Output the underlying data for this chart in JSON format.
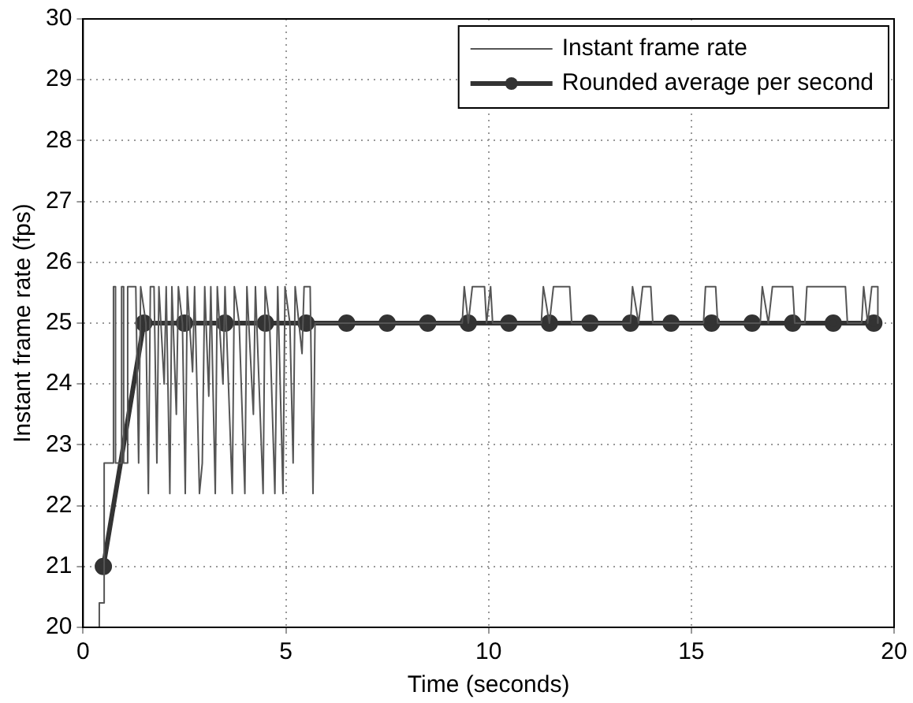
{
  "chart_data": {
    "type": "line",
    "xlabel": "Time (seconds)",
    "ylabel": "Instant frame rate (fps)",
    "xlim": [
      0,
      20
    ],
    "xticks": [
      0,
      5,
      10,
      15,
      20
    ],
    "ylim": [
      20,
      30
    ],
    "yticks": [
      20,
      21,
      22,
      23,
      24,
      25,
      26,
      27,
      28,
      29,
      30
    ],
    "grid": true,
    "legend": "top right",
    "series": [
      {
        "name": "Instant frame rate",
        "color": "#555555",
        "marker": "none",
        "x": [
          0.4,
          0.4,
          0.52,
          0.52,
          0.75,
          0.75,
          0.8,
          0.8,
          0.95,
          0.95,
          1.0,
          1.0,
          1.1,
          1.1,
          1.3,
          1.37,
          1.42,
          1.55,
          1.61,
          1.66,
          1.75,
          1.82,
          1.87,
          2.0,
          2.05,
          2.14,
          2.19,
          2.3,
          2.35,
          2.45,
          2.52,
          2.57,
          2.7,
          2.75,
          2.87,
          2.94,
          3.0,
          3.1,
          3.15,
          3.26,
          3.31,
          3.45,
          3.5,
          3.68,
          3.73,
          3.85,
          3.99,
          4.04,
          4.2,
          4.25,
          4.44,
          4.49,
          4.6,
          4.73,
          4.8,
          4.93,
          4.98,
          5.1,
          5.18,
          5.23,
          5.4,
          5.45,
          5.6,
          5.67,
          5.72,
          9.35,
          9.4,
          9.5,
          9.6,
          9.9,
          9.95,
          10.05,
          10.1,
          11.3,
          11.35,
          11.5,
          11.6,
          12.0,
          12.05,
          13.5,
          13.55,
          13.7,
          13.8,
          14.0,
          14.05,
          15.3,
          15.35,
          15.6,
          15.65,
          16.7,
          16.75,
          16.9,
          17.0,
          17.5,
          17.55,
          17.8,
          17.85,
          18.8,
          18.85,
          19.2,
          19.25,
          19.35,
          19.45,
          19.6,
          19.6
        ],
        "values": [
          20,
          20.4,
          20.4,
          22.7,
          22.7,
          25.6,
          25.6,
          22.7,
          22.7,
          25.6,
          25.6,
          22.7,
          22.7,
          25.6,
          25.6,
          22.7,
          25.6,
          25.0,
          22.2,
          25.6,
          25.6,
          22.7,
          25.6,
          24.0,
          25.6,
          22.2,
          25.6,
          23.5,
          25.6,
          25.0,
          22.2,
          25.6,
          24.2,
          25.6,
          22.2,
          22.7,
          25.6,
          23.8,
          25.6,
          22.2,
          25.6,
          24.0,
          25.6,
          22.2,
          25.6,
          25.0,
          22.2,
          25.6,
          23.5,
          25.6,
          22.2,
          25.6,
          25.0,
          22.2,
          25.6,
          22.2,
          25.6,
          25.0,
          22.7,
          25.6,
          24.5,
          25.6,
          25.6,
          22.2,
          25.0,
          25.0,
          25.6,
          25.0,
          25.6,
          25.6,
          25.0,
          25.6,
          25.0,
          25.0,
          25.6,
          25.0,
          25.6,
          25.6,
          25.0,
          25.0,
          25.6,
          25.0,
          25.6,
          25.6,
          25.0,
          25.0,
          25.6,
          25.6,
          25.0,
          25.0,
          25.6,
          25.0,
          25.6,
          25.6,
          25.0,
          25.0,
          25.6,
          25.6,
          25.0,
          25.0,
          25.6,
          25.0,
          25.6,
          25.6,
          25.0
        ]
      },
      {
        "name": "Rounded average per second",
        "color": "#333333",
        "marker": "circle",
        "x": [
          0.5,
          1.5,
          2.5,
          3.5,
          4.5,
          5.5,
          6.5,
          7.5,
          8.5,
          9.5,
          10.5,
          11.5,
          12.5,
          13.5,
          14.5,
          15.5,
          16.5,
          17.5,
          18.5,
          19.5
        ],
        "values": [
          21,
          25,
          25,
          25,
          25,
          25,
          25,
          25,
          25,
          25,
          25,
          25,
          25,
          25,
          25,
          25,
          25,
          25,
          25,
          25
        ]
      }
    ]
  }
}
